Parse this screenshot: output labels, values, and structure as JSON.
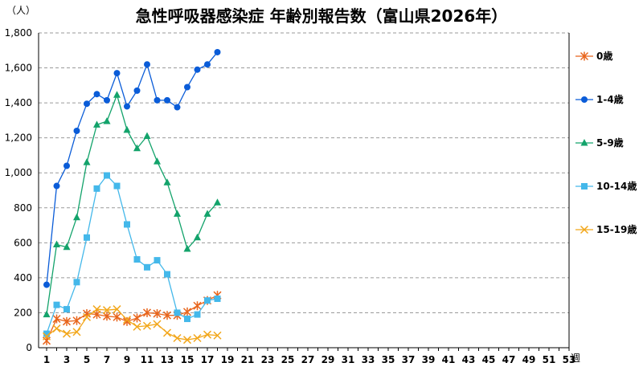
{
  "chart_data": {
    "type": "line",
    "title": "急性呼吸器感染症 年齢別報告数（富山県2026年）",
    "ylabel": "（人）",
    "xlabel": "週",
    "ylim": [
      0,
      1800
    ],
    "yticks": [
      "0",
      "200",
      "400",
      "600",
      "800",
      "1,000",
      "1,200",
      "1,400",
      "1,600",
      "1,800"
    ],
    "ytick_values": [
      0,
      200,
      400,
      600,
      800,
      1000,
      1200,
      1400,
      1600,
      1800
    ],
    "xlim": [
      1,
      53
    ],
    "xticks": [
      "1",
      "3",
      "5",
      "7",
      "9",
      "11",
      "13",
      "15",
      "17",
      "19",
      "21",
      "23",
      "25",
      "27",
      "29",
      "31",
      "33",
      "35",
      "37",
      "39",
      "41",
      "43",
      "45",
      "47",
      "49",
      "51",
      "53"
    ],
    "grid": "horizontal-dashed",
    "legend_position": "right",
    "x": [
      1,
      2,
      3,
      4,
      5,
      6,
      7,
      8,
      9,
      10,
      11,
      12,
      13,
      14,
      15,
      16,
      17,
      18
    ],
    "series": [
      {
        "name": "0歳",
        "color": "#E8651C",
        "marker": "star",
        "values": [
          40,
          165,
          150,
          155,
          195,
          190,
          180,
          175,
          150,
          170,
          200,
          195,
          185,
          185,
          205,
          240,
          270,
          300
        ]
      },
      {
        "name": "1-4歳",
        "color": "#0A5CD8",
        "marker": "circle",
        "values": [
          360,
          925,
          1040,
          1240,
          1395,
          1450,
          1415,
          1570,
          1380,
          1470,
          1620,
          1415,
          1415,
          1375,
          1490,
          1590,
          1620,
          1690
        ]
      },
      {
        "name": "5-9歳",
        "color": "#13A36B",
        "marker": "triangle",
        "values": [
          190,
          590,
          575,
          745,
          1060,
          1275,
          1295,
          1445,
          1245,
          1140,
          1210,
          1065,
          945,
          765,
          565,
          630,
          765,
          830
        ]
      },
      {
        "name": "10-14歳",
        "color": "#44B8EA",
        "marker": "square",
        "values": [
          80,
          245,
          220,
          375,
          630,
          910,
          985,
          925,
          705,
          505,
          460,
          500,
          420,
          200,
          165,
          190,
          270,
          280
        ]
      },
      {
        "name": "15-19歳",
        "color": "#F2A71B",
        "marker": "x",
        "values": [
          65,
          110,
          80,
          90,
          175,
          220,
          215,
          220,
          160,
          120,
          125,
          135,
          85,
          55,
          45,
          55,
          75,
          70
        ]
      }
    ]
  }
}
